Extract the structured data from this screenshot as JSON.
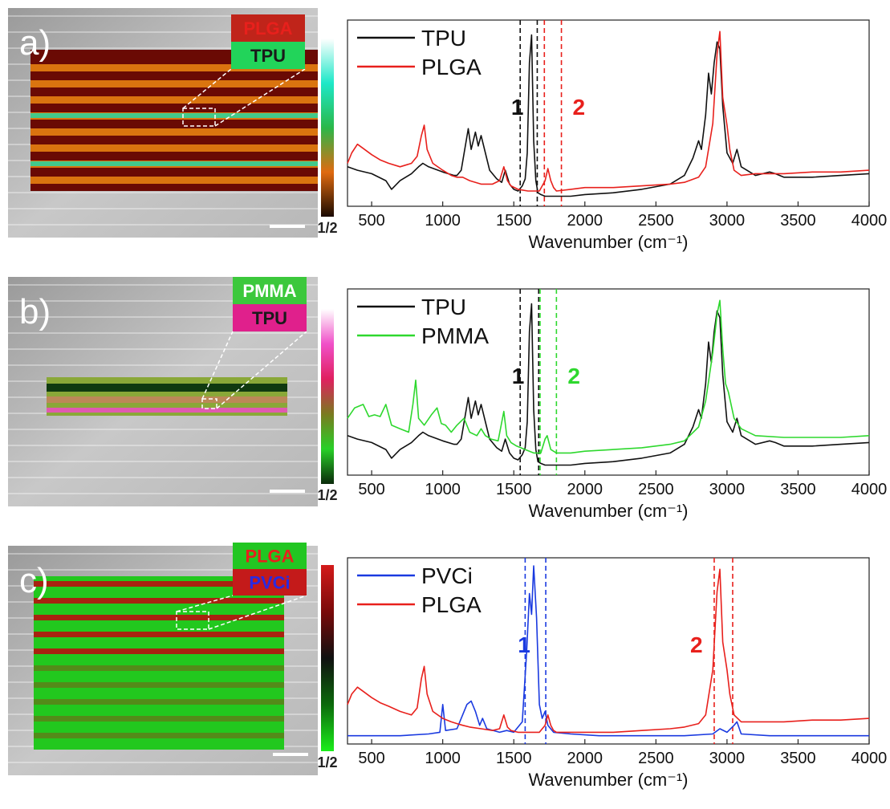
{
  "figure": {
    "panels": [
      {
        "label": "a)",
        "inset_labels": [
          "PLGA",
          "TPU"
        ],
        "inset_label_colors": [
          "#e8201c",
          "#1a1a1a"
        ],
        "inset_bg_colors": [
          "#c0241a",
          "#22d45a"
        ],
        "colorbar_label": "1/2",
        "colorbar_stops": [
          "#ffffff",
          "#1ee8c8",
          "#2ab84a",
          "#e06a10",
          "#1a0a00"
        ],
        "map_colors": {
          "base": "#6a0a04",
          "stripe": "#e07a10",
          "accent": "#27d8a0"
        },
        "number_labels": [
          {
            "text": "1",
            "color": "#111111"
          },
          {
            "text": "2",
            "color": "#e8201c"
          }
        ],
        "dashed_colors": [
          "#111111",
          "#111111",
          "#e8201c",
          "#e8201c"
        ]
      },
      {
        "label": "b)",
        "inset_labels": [
          "PMMA",
          "TPU"
        ],
        "inset_label_colors": [
          "#ffffff",
          "#1a1a1a"
        ],
        "inset_bg_colors": [
          "#3cc83c",
          "#e0208c"
        ],
        "colorbar_label": "1/2",
        "colorbar_stops": [
          "#ffffff",
          "#f050c8",
          "#e02060",
          "#7a7a20",
          "#28d028",
          "#0a2a0a"
        ],
        "map_colors": {
          "base": "#8aa838",
          "stripe": "#103a10",
          "accent": "#e05ab0"
        },
        "number_labels": [
          {
            "text": "1",
            "color": "#111111"
          },
          {
            "text": "2",
            "color": "#2ed82e"
          }
        ],
        "dashed_colors": [
          "#111111",
          "#111111",
          "#2ed82e",
          "#2ed82e"
        ]
      },
      {
        "label": "c)",
        "inset_labels": [
          "PLGA",
          "PVCi"
        ],
        "inset_label_colors": [
          "#e8201c",
          "#2a2ae0"
        ],
        "inset_bg_colors": [
          "#22c622",
          "#c41a1a"
        ],
        "colorbar_label": "1/2",
        "colorbar_stops": [
          "#d41a1a",
          "#7a0a0a",
          "#101010",
          "#0c6a0c",
          "#1aee1a"
        ],
        "map_colors": {
          "base": "#22c81e",
          "stripe": "#b01a10",
          "accent": "#22c81e"
        },
        "number_labels": [
          {
            "text": "1",
            "color": "#1a3ae0"
          },
          {
            "text": "2",
            "color": "#e8201c"
          }
        ],
        "dashed_colors": [
          "#1a3ae0",
          "#1a3ae0",
          "#e8201c",
          "#e8201c"
        ]
      }
    ]
  },
  "chart_data": [
    {
      "type": "line",
      "xlabel": "Wavenumber (cm⁻¹)",
      "xlim": [
        330,
        4000
      ],
      "xticks": [
        500,
        1000,
        1500,
        2000,
        2500,
        3000,
        3500,
        4000
      ],
      "ylabel": "",
      "legend_position": "top-left",
      "dashed_lines": [
        1545,
        1665,
        1715,
        1835
      ],
      "series": [
        {
          "name": "TPU",
          "color": "#111111",
          "x": [
            330,
            400,
            500,
            600,
            640,
            700,
            780,
            830,
            860,
            900,
            1000,
            1080,
            1100,
            1130,
            1180,
            1200,
            1230,
            1250,
            1270,
            1300,
            1330,
            1380,
            1415,
            1440,
            1470,
            1500,
            1530,
            1560,
            1580,
            1595,
            1610,
            1625,
            1640,
            1655,
            1670,
            1690,
            1720,
            1760,
            1800,
            1900,
            2000,
            2200,
            2400,
            2600,
            2700,
            2760,
            2800,
            2820,
            2850,
            2870,
            2890,
            2910,
            2930,
            2950,
            2970,
            3000,
            3040,
            3070,
            3100,
            3200,
            3300,
            3340,
            3400,
            3600,
            3800,
            4000
          ],
          "y": [
            0.2,
            0.18,
            0.16,
            0.12,
            0.07,
            0.12,
            0.16,
            0.2,
            0.22,
            0.2,
            0.17,
            0.15,
            0.15,
            0.18,
            0.42,
            0.3,
            0.4,
            0.32,
            0.38,
            0.28,
            0.18,
            0.13,
            0.11,
            0.18,
            0.1,
            0.07,
            0.06,
            0.09,
            0.13,
            0.28,
            0.8,
            0.96,
            0.35,
            0.12,
            0.05,
            0.04,
            0.03,
            0.03,
            0.03,
            0.03,
            0.04,
            0.05,
            0.07,
            0.1,
            0.15,
            0.25,
            0.35,
            0.3,
            0.5,
            0.74,
            0.62,
            0.8,
            0.92,
            0.88,
            0.55,
            0.28,
            0.22,
            0.3,
            0.2,
            0.15,
            0.17,
            0.16,
            0.14,
            0.14,
            0.15,
            0.16
          ]
        },
        {
          "name": "PLGA",
          "color": "#e8201c",
          "x": [
            330,
            360,
            400,
            450,
            500,
            560,
            620,
            700,
            780,
            820,
            850,
            870,
            890,
            930,
            1000,
            1060,
            1100,
            1140,
            1190,
            1270,
            1350,
            1400,
            1430,
            1455,
            1480,
            1530,
            1600,
            1680,
            1720,
            1740,
            1760,
            1780,
            1800,
            1900,
            2000,
            2200,
            2400,
            2600,
            2700,
            2800,
            2850,
            2900,
            2930,
            2950,
            2970,
            3000,
            3020,
            3050,
            3100,
            3200,
            3400,
            3600,
            3800,
            4000
          ],
          "y": [
            0.22,
            0.28,
            0.33,
            0.3,
            0.27,
            0.24,
            0.22,
            0.2,
            0.22,
            0.26,
            0.38,
            0.44,
            0.3,
            0.22,
            0.18,
            0.15,
            0.14,
            0.14,
            0.12,
            0.1,
            0.1,
            0.12,
            0.2,
            0.12,
            0.09,
            0.07,
            0.06,
            0.06,
            0.12,
            0.19,
            0.12,
            0.08,
            0.06,
            0.07,
            0.08,
            0.08,
            0.09,
            0.1,
            0.11,
            0.14,
            0.2,
            0.45,
            0.85,
            0.98,
            0.6,
            0.44,
            0.3,
            0.18,
            0.15,
            0.16,
            0.16,
            0.17,
            0.17,
            0.18
          ]
        }
      ]
    },
    {
      "type": "line",
      "xlabel": "Wavenumber (cm⁻¹)",
      "xlim": [
        330,
        4000
      ],
      "xticks": [
        500,
        1000,
        1500,
        2000,
        2500,
        3000,
        3500,
        4000
      ],
      "ylabel": "",
      "legend_position": "top-left",
      "dashed_lines": [
        1545,
        1675,
        1685,
        1800
      ],
      "series": [
        {
          "name": "TPU",
          "color": "#111111",
          "x": [
            330,
            400,
            500,
            600,
            640,
            700,
            780,
            830,
            860,
            900,
            1000,
            1080,
            1100,
            1130,
            1180,
            1200,
            1230,
            1250,
            1270,
            1300,
            1330,
            1380,
            1415,
            1440,
            1470,
            1500,
            1530,
            1560,
            1580,
            1595,
            1610,
            1625,
            1640,
            1655,
            1670,
            1690,
            1720,
            1760,
            1800,
            1900,
            2000,
            2200,
            2400,
            2600,
            2700,
            2760,
            2800,
            2820,
            2850,
            2870,
            2890,
            2910,
            2930,
            2950,
            2970,
            3000,
            3040,
            3070,
            3100,
            3200,
            3300,
            3340,
            3400,
            3600,
            3800,
            4000
          ],
          "y": [
            0.2,
            0.18,
            0.16,
            0.12,
            0.07,
            0.12,
            0.16,
            0.2,
            0.22,
            0.2,
            0.17,
            0.15,
            0.15,
            0.18,
            0.42,
            0.3,
            0.4,
            0.32,
            0.38,
            0.28,
            0.18,
            0.13,
            0.11,
            0.18,
            0.1,
            0.07,
            0.06,
            0.09,
            0.13,
            0.28,
            0.8,
            0.96,
            0.35,
            0.12,
            0.05,
            0.04,
            0.03,
            0.03,
            0.03,
            0.03,
            0.04,
            0.05,
            0.07,
            0.1,
            0.15,
            0.25,
            0.35,
            0.3,
            0.5,
            0.74,
            0.62,
            0.8,
            0.92,
            0.88,
            0.55,
            0.28,
            0.22,
            0.3,
            0.2,
            0.15,
            0.17,
            0.16,
            0.14,
            0.14,
            0.15,
            0.16
          ]
        },
        {
          "name": "PMMA",
          "color": "#2ed82e",
          "x": [
            330,
            380,
            440,
            480,
            520,
            560,
            600,
            640,
            700,
            760,
            790,
            810,
            830,
            870,
            920,
            960,
            990,
            1020,
            1060,
            1100,
            1150,
            1190,
            1240,
            1270,
            1300,
            1340,
            1390,
            1430,
            1450,
            1480,
            1520,
            1580,
            1640,
            1690,
            1720,
            1735,
            1760,
            1800,
            1900,
            2000,
            2200,
            2400,
            2600,
            2700,
            2800,
            2850,
            2900,
            2930,
            2950,
            2970,
            2990,
            3010,
            3050,
            3100,
            3200,
            3400,
            3600,
            3800,
            4000
          ],
          "y": [
            0.3,
            0.36,
            0.38,
            0.31,
            0.32,
            0.31,
            0.38,
            0.26,
            0.24,
            0.22,
            0.38,
            0.52,
            0.3,
            0.26,
            0.32,
            0.36,
            0.27,
            0.26,
            0.22,
            0.26,
            0.3,
            0.22,
            0.2,
            0.24,
            0.2,
            0.18,
            0.17,
            0.34,
            0.2,
            0.16,
            0.14,
            0.12,
            0.1,
            0.1,
            0.18,
            0.2,
            0.12,
            0.1,
            0.1,
            0.11,
            0.12,
            0.13,
            0.15,
            0.17,
            0.25,
            0.4,
            0.68,
            0.9,
            0.98,
            0.7,
            0.5,
            0.45,
            0.3,
            0.24,
            0.2,
            0.19,
            0.19,
            0.19,
            0.2
          ]
        }
      ]
    },
    {
      "type": "line",
      "xlabel": "Wavenumber (cm⁻¹)",
      "xlim": [
        330,
        4000
      ],
      "xticks": [
        500,
        1000,
        1500,
        2000,
        2500,
        3000,
        3500,
        4000
      ],
      "ylabel": "",
      "legend_position": "top-left",
      "dashed_lines": [
        1580,
        1725,
        2910,
        3040
      ],
      "series": [
        {
          "name": "PVCi",
          "color": "#1a3ae0",
          "x": [
            330,
            500,
            700,
            900,
            980,
            1000,
            1020,
            1100,
            1170,
            1200,
            1230,
            1260,
            1280,
            1310,
            1400,
            1450,
            1500,
            1560,
            1590,
            1610,
            1625,
            1640,
            1660,
            1680,
            1700,
            1720,
            1740,
            1780,
            1900,
            2100,
            2400,
            2700,
            2900,
            2950,
            3000,
            3050,
            3070,
            3100,
            3300,
            3600,
            4000
          ],
          "y": [
            0.02,
            0.02,
            0.02,
            0.03,
            0.04,
            0.2,
            0.05,
            0.06,
            0.2,
            0.22,
            0.16,
            0.08,
            0.12,
            0.06,
            0.04,
            0.05,
            0.04,
            0.1,
            0.5,
            0.84,
            0.72,
            1.0,
            0.7,
            0.2,
            0.12,
            0.16,
            0.08,
            0.04,
            0.03,
            0.02,
            0.02,
            0.02,
            0.03,
            0.06,
            0.04,
            0.08,
            0.1,
            0.03,
            0.02,
            0.02,
            0.02
          ]
        },
        {
          "name": "PLGA",
          "color": "#e8201c",
          "x": [
            330,
            360,
            400,
            450,
            500,
            560,
            620,
            700,
            780,
            820,
            850,
            870,
            890,
            930,
            1000,
            1060,
            1100,
            1140,
            1190,
            1270,
            1350,
            1400,
            1430,
            1455,
            1480,
            1530,
            1600,
            1680,
            1720,
            1740,
            1760,
            1780,
            1800,
            1900,
            2000,
            2200,
            2400,
            2600,
            2700,
            2800,
            2850,
            2900,
            2930,
            2950,
            2970,
            3000,
            3020,
            3050,
            3100,
            3200,
            3400,
            3600,
            3800,
            4000
          ],
          "y": [
            0.2,
            0.26,
            0.3,
            0.27,
            0.24,
            0.21,
            0.19,
            0.16,
            0.14,
            0.18,
            0.35,
            0.42,
            0.26,
            0.16,
            0.12,
            0.1,
            0.09,
            0.08,
            0.07,
            0.06,
            0.05,
            0.06,
            0.14,
            0.07,
            0.05,
            0.04,
            0.04,
            0.04,
            0.08,
            0.14,
            0.08,
            0.05,
            0.04,
            0.04,
            0.04,
            0.04,
            0.05,
            0.06,
            0.07,
            0.09,
            0.14,
            0.4,
            0.85,
            0.98,
            0.56,
            0.4,
            0.26,
            0.14,
            0.1,
            0.1,
            0.1,
            0.11,
            0.11,
            0.12
          ]
        }
      ]
    }
  ]
}
